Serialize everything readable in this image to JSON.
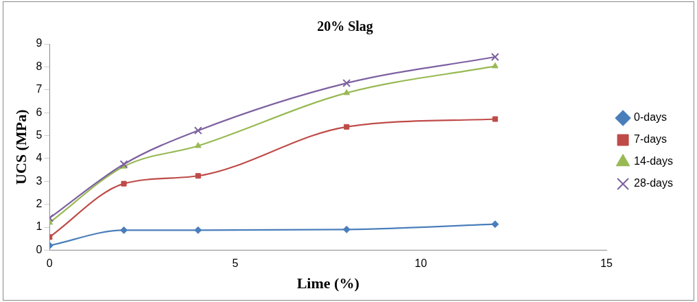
{
  "chart_data": {
    "type": "line",
    "title": "20% Slag",
    "xlabel": "Lime (%)",
    "ylabel": "UCS (MPa)",
    "x": [
      0,
      2,
      4,
      8,
      12
    ],
    "series": [
      {
        "name": "0-days",
        "color": "#4a7ebb",
        "marker": "diamond",
        "values": [
          0.2,
          0.87,
          0.87,
          0.9,
          1.13
        ]
      },
      {
        "name": "7-days",
        "color": "#be4b48",
        "marker": "square",
        "values": [
          0.57,
          2.9,
          3.24,
          5.38,
          5.72
        ]
      },
      {
        "name": "14-days",
        "color": "#98b954",
        "marker": "triangle",
        "values": [
          1.2,
          3.65,
          4.55,
          6.86,
          8.03
        ]
      },
      {
        "name": "28-days",
        "color": "#7d60a0",
        "marker": "cross",
        "values": [
          1.4,
          3.75,
          5.22,
          7.29,
          8.43
        ]
      }
    ],
    "xlim": [
      0,
      15
    ],
    "xticks": [
      0,
      5,
      10,
      15
    ],
    "ylim": [
      0,
      9
    ],
    "yticks": [
      0,
      1,
      2,
      3,
      4,
      5,
      6,
      7,
      8,
      9
    ],
    "grid": false,
    "legend": "right",
    "line_style": "solid"
  }
}
